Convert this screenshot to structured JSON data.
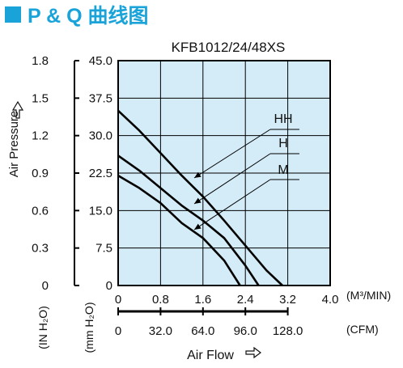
{
  "header": {
    "title": "P & Q 曲线图",
    "accent_color": "#1aa3d9"
  },
  "chart_data": {
    "type": "line",
    "title": "KFB1012/24/48XS",
    "xlabel": "Air Flow",
    "ylabel": "Air Pressure",
    "plot_background": "#d4ecf8",
    "grid": true,
    "x_axis_primary": {
      "unit": "(M³/MIN)",
      "ticks": [
        "0",
        "0.8",
        "1.6",
        "2.4",
        "3.2",
        "4.0"
      ],
      "range": [
        0,
        4.0
      ]
    },
    "x_axis_secondary": {
      "unit": "(CFM)",
      "ticks": [
        "0",
        "32.0",
        "64.0",
        "96.0",
        "128.0"
      ]
    },
    "y_axis_inner": {
      "unit": "(mm H₂O)",
      "ticks": [
        "0",
        "7.5",
        "15.0",
        "22.5",
        "30.0",
        "37.5",
        "45.0"
      ],
      "range": [
        0,
        45.0
      ]
    },
    "y_axis_outer": {
      "unit": "(IN H₂O)",
      "ticks": [
        "0",
        "0.3",
        "0.6",
        "0.9",
        "1.2",
        "1.5",
        "1.8"
      ]
    },
    "series": [
      {
        "name": "HH",
        "x": [
          0,
          0.4,
          0.8,
          1.2,
          1.6,
          2.0,
          2.4,
          2.8,
          3.1
        ],
        "y": [
          35.0,
          31.0,
          26.5,
          22.0,
          17.8,
          13.0,
          8.0,
          3.0,
          0
        ]
      },
      {
        "name": "H",
        "x": [
          0,
          0.4,
          0.8,
          1.2,
          1.6,
          2.0,
          2.4,
          2.65
        ],
        "y": [
          26.0,
          23.0,
          19.5,
          16.0,
          13.0,
          9.5,
          4.0,
          0
        ]
      },
      {
        "name": "M",
        "x": [
          0,
          0.4,
          0.8,
          1.2,
          1.6,
          2.0,
          2.3
        ],
        "y": [
          22.0,
          19.5,
          16.5,
          12.5,
          9.5,
          5.0,
          0
        ]
      }
    ]
  }
}
